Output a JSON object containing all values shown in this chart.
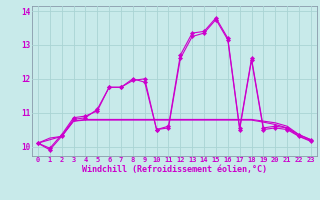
{
  "line_upper": [
    10.1,
    9.9,
    10.3,
    10.8,
    10.85,
    11.1,
    11.75,
    11.75,
    11.95,
    12.0,
    10.5,
    10.6,
    12.7,
    13.35,
    13.4,
    13.8,
    13.2,
    10.55,
    12.6,
    10.55,
    10.6,
    10.55,
    10.35,
    10.2
  ],
  "line_upper2": [
    10.1,
    9.95,
    10.35,
    10.85,
    10.9,
    11.05,
    11.75,
    11.75,
    12.0,
    11.9,
    10.5,
    10.55,
    12.6,
    13.25,
    13.35,
    13.75,
    13.15,
    10.5,
    12.55,
    10.5,
    10.55,
    10.5,
    10.3,
    10.15
  ],
  "line_lower1": [
    10.1,
    10.25,
    10.3,
    10.75,
    10.8,
    10.8,
    10.8,
    10.8,
    10.8,
    10.8,
    10.8,
    10.8,
    10.8,
    10.8,
    10.8,
    10.8,
    10.8,
    10.8,
    10.8,
    10.75,
    10.7,
    10.6,
    10.35,
    10.2
  ],
  "line_lower2": [
    10.1,
    10.2,
    10.3,
    10.75,
    10.78,
    10.78,
    10.78,
    10.78,
    10.78,
    10.78,
    10.78,
    10.78,
    10.78,
    10.78,
    10.78,
    10.78,
    10.78,
    10.78,
    10.78,
    10.72,
    10.65,
    10.55,
    10.3,
    10.18
  ],
  "line_color": "#cc00cc",
  "bg_color": "#c8eaea",
  "grid_color": "#aad4d4",
  "xlabel": "Windchill (Refroidissement éolien,°C)",
  "ylim": [
    9.72,
    14.15
  ],
  "xlim": [
    -0.5,
    23.5
  ],
  "yticks": [
    10,
    11,
    12,
    13,
    14
  ],
  "xticks": [
    0,
    1,
    2,
    3,
    4,
    5,
    6,
    7,
    8,
    9,
    10,
    11,
    12,
    13,
    14,
    15,
    16,
    17,
    18,
    19,
    20,
    21,
    22,
    23
  ],
  "title_fontsize": 7,
  "tick_fontsize": 5,
  "xlabel_fontsize": 6
}
